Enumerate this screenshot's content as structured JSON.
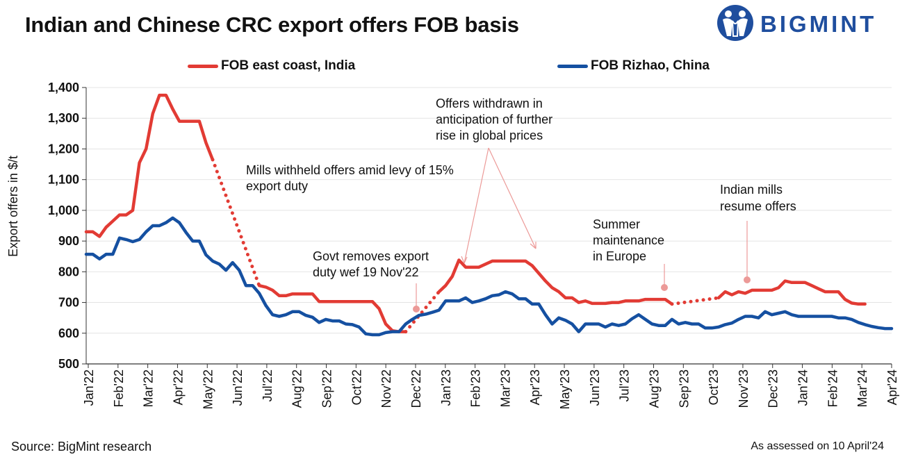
{
  "title": "Indian and Chinese CRC export offers FOB basis",
  "brand": "BIGMINT",
  "footer": {
    "source": "Source: BigMint research",
    "assessed": "As assessed on 10 April'24"
  },
  "colors": {
    "india": "#e23b34",
    "china": "#1550a1",
    "annotation_marker": "#ec9a98",
    "brand": "#1f4e9e"
  },
  "chart_data": {
    "type": "line",
    "ylabel": "Export offers in $/t",
    "ylim": [
      500,
      1400
    ],
    "yticks": [
      "500",
      "600",
      "700",
      "800",
      "900",
      "1,000",
      "1,100",
      "1,200",
      "1,300",
      "1,400"
    ],
    "ytick_values": [
      500,
      600,
      700,
      800,
      900,
      1000,
      1100,
      1200,
      1300,
      1400
    ],
    "xticks": [
      "Jan'22",
      "Feb'22",
      "Mar'22",
      "Apr'22",
      "May'22",
      "Jun'22",
      "Jul'22",
      "Aug'22",
      "Sep'22",
      "Oct'22",
      "Nov'22",
      "Dec'22",
      "Jan'23",
      "Feb'23",
      "Mar'23",
      "Apr'23",
      "May'23",
      "Jun'23",
      "Jul'23",
      "Aug'23",
      "Sep'23",
      "Oct'23",
      "Nov'23",
      "Dec'23",
      "Jan'24",
      "Feb'24",
      "Mar'24",
      "Apr'24"
    ],
    "x_unit": "weeks",
    "grid": true,
    "legend_position": "top",
    "series": [
      {
        "name": "FOB east coast, India",
        "color": "#e23b34",
        "segments": [
          {
            "style": "solid",
            "points": [
              [
                0,
                930
              ],
              [
                1,
                930
              ],
              [
                2,
                915
              ],
              [
                3,
                945
              ],
              [
                4,
                965
              ],
              [
                5,
                985
              ],
              [
                6,
                985
              ],
              [
                7,
                1000
              ],
              [
                8,
                1155
              ],
              [
                9,
                1200
              ],
              [
                10,
                1315
              ],
              [
                11,
                1375
              ],
              [
                12,
                1375
              ],
              [
                13,
                1330
              ],
              [
                14,
                1290
              ],
              [
                15,
                1290
              ],
              [
                16,
                1290
              ],
              [
                17,
                1290
              ],
              [
                18,
                1220
              ],
              [
                19,
                1165
              ]
            ]
          },
          {
            "style": "dotted",
            "points": [
              [
                19,
                1165
              ],
              [
                26,
                755
              ]
            ]
          },
          {
            "style": "solid",
            "points": [
              [
                26,
                755
              ],
              [
                27,
                750
              ],
              [
                28,
                740
              ],
              [
                29,
                722
              ],
              [
                30,
                722
              ],
              [
                31,
                728
              ],
              [
                32,
                728
              ],
              [
                33,
                728
              ],
              [
                34,
                728
              ],
              [
                35,
                703
              ],
              [
                36,
                703
              ],
              [
                37,
                703
              ],
              [
                38,
                703
              ],
              [
                39,
                703
              ],
              [
                40,
                703
              ],
              [
                41,
                703
              ],
              [
                42,
                703
              ],
              [
                43,
                703
              ],
              [
                44,
                680
              ],
              [
                45,
                630
              ],
              [
                46,
                608
              ],
              [
                47,
                605
              ],
              [
                48,
                605
              ]
            ]
          },
          {
            "style": "dotted",
            "points": [
              [
                48,
                605
              ],
              [
                53,
                735
              ]
            ]
          },
          {
            "style": "solid",
            "points": [
              [
                53,
                735
              ],
              [
                54,
                755
              ],
              [
                55,
                785
              ],
              [
                56,
                838
              ],
              [
                57,
                815
              ],
              [
                58,
                815
              ],
              [
                59,
                815
              ],
              [
                60,
                825
              ],
              [
                61,
                835
              ],
              [
                62,
                835
              ],
              [
                63,
                835
              ],
              [
                64,
                835
              ],
              [
                65,
                835
              ],
              [
                66,
                835
              ],
              [
                67,
                820
              ],
              [
                68,
                795
              ],
              [
                69,
                770
              ],
              [
                70,
                748
              ],
              [
                71,
                735
              ],
              [
                72,
                715
              ],
              [
                73,
                715
              ],
              [
                74,
                700
              ],
              [
                75,
                705
              ],
              [
                76,
                697
              ],
              [
                77,
                697
              ],
              [
                78,
                697
              ],
              [
                79,
                700
              ],
              [
                80,
                700
              ],
              [
                81,
                705
              ],
              [
                82,
                705
              ],
              [
                83,
                705
              ],
              [
                84,
                710
              ],
              [
                85,
                710
              ],
              [
                86,
                710
              ],
              [
                87,
                710
              ],
              [
                88,
                695
              ]
            ]
          },
          {
            "style": "dotted",
            "points": [
              [
                88,
                695
              ],
              [
                95,
                715
              ]
            ]
          },
          {
            "style": "solid",
            "points": [
              [
                95,
                715
              ],
              [
                96,
                735
              ],
              [
                97,
                725
              ],
              [
                98,
                735
              ],
              [
                99,
                730
              ],
              [
                100,
                740
              ],
              [
                101,
                740
              ],
              [
                102,
                740
              ],
              [
                103,
                740
              ],
              [
                104,
                748
              ],
              [
                105,
                770
              ],
              [
                106,
                765
              ],
              [
                107,
                765
              ],
              [
                108,
                765
              ],
              [
                109,
                755
              ],
              [
                110,
                745
              ],
              [
                111,
                735
              ],
              [
                112,
                735
              ],
              [
                113,
                735
              ],
              [
                114,
                710
              ],
              [
                115,
                698
              ],
              [
                116,
                695
              ],
              [
                117,
                695
              ]
            ]
          }
        ]
      },
      {
        "name": "FOB Rizhao, China",
        "color": "#1550a1",
        "segments": [
          {
            "style": "solid",
            "points": [
              [
                0,
                857
              ],
              [
                1,
                857
              ],
              [
                2,
                842
              ],
              [
                3,
                857
              ],
              [
                4,
                857
              ],
              [
                5,
                910
              ],
              [
                6,
                905
              ],
              [
                7,
                898
              ],
              [
                8,
                905
              ],
              [
                9,
                930
              ],
              [
                10,
                950
              ],
              [
                11,
                950
              ],
              [
                12,
                960
              ],
              [
                13,
                975
              ],
              [
                14,
                960
              ],
              [
                15,
                928
              ],
              [
                16,
                900
              ],
              [
                17,
                900
              ],
              [
                18,
                855
              ],
              [
                19,
                835
              ],
              [
                20,
                825
              ],
              [
                21,
                805
              ],
              [
                22,
                830
              ],
              [
                23,
                805
              ],
              [
                24,
                755
              ],
              [
                25,
                755
              ],
              [
                26,
                730
              ],
              [
                27,
                690
              ],
              [
                28,
                660
              ],
              [
                29,
                655
              ],
              [
                30,
                660
              ],
              [
                31,
                670
              ],
              [
                32,
                670
              ],
              [
                33,
                658
              ],
              [
                34,
                652
              ],
              [
                35,
                635
              ],
              [
                36,
                645
              ],
              [
                37,
                640
              ],
              [
                38,
                640
              ],
              [
                39,
                630
              ],
              [
                40,
                628
              ],
              [
                41,
                620
              ],
              [
                42,
                598
              ],
              [
                43,
                595
              ],
              [
                44,
                595
              ],
              [
                45,
                602
              ],
              [
                46,
                605
              ],
              [
                47,
                605
              ],
              [
                48,
                630
              ],
              [
                49,
                645
              ],
              [
                50,
                658
              ],
              [
                51,
                662
              ],
              [
                52,
                668
              ],
              [
                53,
                675
              ],
              [
                54,
                705
              ],
              [
                55,
                705
              ],
              [
                56,
                705
              ],
              [
                57,
                715
              ],
              [
                58,
                700
              ],
              [
                59,
                705
              ],
              [
                60,
                712
              ],
              [
                61,
                722
              ],
              [
                62,
                725
              ],
              [
                63,
                735
              ],
              [
                64,
                728
              ],
              [
                65,
                712
              ],
              [
                66,
                712
              ],
              [
                67,
                695
              ],
              [
                68,
                695
              ],
              [
                69,
                660
              ],
              [
                70,
                630
              ],
              [
                71,
                650
              ],
              [
                72,
                642
              ],
              [
                73,
                630
              ],
              [
                74,
                605
              ],
              [
                75,
                630
              ],
              [
                76,
                630
              ],
              [
                77,
                630
              ],
              [
                78,
                620
              ],
              [
                79,
                630
              ],
              [
                80,
                625
              ],
              [
                81,
                630
              ],
              [
                82,
                647
              ],
              [
                83,
                660
              ],
              [
                84,
                645
              ],
              [
                85,
                630
              ],
              [
                86,
                625
              ],
              [
                87,
                625
              ],
              [
                88,
                645
              ],
              [
                89,
                630
              ],
              [
                90,
                635
              ],
              [
                91,
                630
              ],
              [
                92,
                630
              ],
              [
                93,
                617
              ],
              [
                94,
                617
              ],
              [
                95,
                620
              ],
              [
                96,
                628
              ],
              [
                97,
                633
              ],
              [
                98,
                645
              ],
              [
                99,
                655
              ],
              [
                100,
                655
              ],
              [
                101,
                650
              ],
              [
                102,
                670
              ],
              [
                103,
                660
              ],
              [
                104,
                665
              ],
              [
                105,
                670
              ],
              [
                106,
                660
              ],
              [
                107,
                655
              ],
              [
                108,
                655
              ],
              [
                109,
                655
              ],
              [
                110,
                655
              ],
              [
                111,
                655
              ],
              [
                112,
                655
              ],
              [
                113,
                650
              ],
              [
                114,
                650
              ],
              [
                115,
                645
              ],
              [
                116,
                635
              ],
              [
                117,
                628
              ],
              [
                118,
                622
              ],
              [
                119,
                618
              ],
              [
                120,
                615
              ],
              [
                121,
                615
              ]
            ]
          }
        ]
      }
    ],
    "annotations": [
      {
        "text": [
          "Mills withheld offers amid levy of 15%",
          "export duty"
        ]
      },
      {
        "text": [
          "Govt removes export",
          "duty wef 19 Nov'22"
        ]
      },
      {
        "text": [
          "Offers withdrawn in",
          "anticipation of further",
          "rise in global prices"
        ]
      },
      {
        "text": [
          "Summer",
          "maintenance",
          "in Europe"
        ]
      },
      {
        "text": [
          "Indian mills",
          "resume offers"
        ]
      }
    ]
  }
}
